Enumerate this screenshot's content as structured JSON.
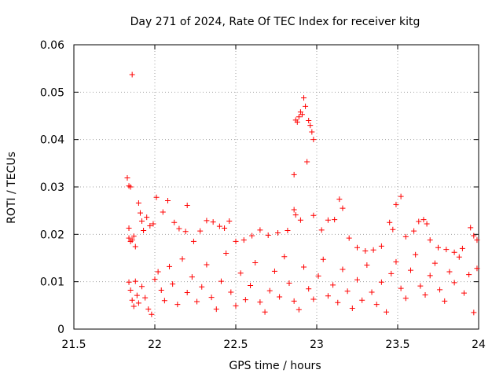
{
  "chart_data": {
    "type": "scatter",
    "title": "Day 271 of 2024, Rate Of TEC Index for receiver kitg",
    "xlabel": "GPS time / hours",
    "ylabel": "ROTI / TECUs",
    "xlim": [
      21.5,
      24
    ],
    "ylim": [
      0,
      0.06
    ],
    "x_ticks": [
      21.5,
      22,
      22.5,
      23,
      23.5,
      24
    ],
    "x_tick_labels": [
      "21.5",
      "22",
      "22.5",
      "23",
      "23.5",
      "24"
    ],
    "y_ticks": [
      0,
      0.01,
      0.02,
      0.03,
      0.04,
      0.05,
      0.06
    ],
    "y_tick_labels": [
      "0",
      "0.01",
      "0.02",
      "0.03",
      "0.04",
      "0.05",
      "0.06"
    ],
    "grid": true,
    "marker": "+",
    "color": "#ff0000",
    "series": [
      {
        "name": "ROTI kitg",
        "points": [
          [
            21.83,
            0.0319
          ],
          [
            21.84,
            0.0302
          ],
          [
            21.85,
            0.03
          ],
          [
            21.84,
            0.0213
          ],
          [
            21.86,
            0.0537
          ],
          [
            21.84,
            0.0192
          ],
          [
            21.85,
            0.0185
          ],
          [
            21.86,
            0.0188
          ],
          [
            21.87,
            0.0196
          ],
          [
            21.88,
            0.0174
          ],
          [
            21.9,
            0.0266
          ],
          [
            21.91,
            0.0245
          ],
          [
            21.92,
            0.0228
          ],
          [
            21.93,
            0.0208
          ],
          [
            21.95,
            0.0236
          ],
          [
            21.97,
            0.0218
          ],
          [
            21.99,
            0.0222
          ],
          [
            22.01,
            0.0278
          ],
          [
            22.05,
            0.0247
          ],
          [
            22.08,
            0.0271
          ],
          [
            22.12,
            0.0225
          ],
          [
            22.15,
            0.0212
          ],
          [
            22.19,
            0.0206
          ],
          [
            22.2,
            0.0261
          ],
          [
            22.24,
            0.0185
          ],
          [
            22.28,
            0.0207
          ],
          [
            22.32,
            0.0229
          ],
          [
            22.36,
            0.0226
          ],
          [
            22.4,
            0.0217
          ],
          [
            22.43,
            0.0213
          ],
          [
            22.46,
            0.0228
          ],
          [
            22.5,
            0.0185
          ],
          [
            22.55,
            0.0188
          ],
          [
            22.6,
            0.0197
          ],
          [
            22.65,
            0.0209
          ],
          [
            22.7,
            0.0198
          ],
          [
            22.76,
            0.0203
          ],
          [
            22.82,
            0.0208
          ],
          [
            22.86,
            0.0252
          ],
          [
            22.87,
            0.0241
          ],
          [
            22.9,
            0.023
          ],
          [
            22.86,
            0.0326
          ],
          [
            22.87,
            0.0441
          ],
          [
            22.88,
            0.0437
          ],
          [
            22.89,
            0.0448
          ],
          [
            22.9,
            0.0458
          ],
          [
            22.91,
            0.0453
          ],
          [
            22.92,
            0.0488
          ],
          [
            22.93,
            0.047
          ],
          [
            22.94,
            0.0353
          ],
          [
            22.95,
            0.044
          ],
          [
            22.96,
            0.043
          ],
          [
            22.97,
            0.0416
          ],
          [
            22.98,
            0.04
          ],
          [
            22.98,
            0.024
          ],
          [
            23.03,
            0.0209
          ],
          [
            23.07,
            0.023
          ],
          [
            23.11,
            0.0231
          ],
          [
            23.14,
            0.0274
          ],
          [
            23.16,
            0.0255
          ],
          [
            23.2,
            0.0192
          ],
          [
            23.25,
            0.0172
          ],
          [
            23.3,
            0.0165
          ],
          [
            23.35,
            0.0167
          ],
          [
            23.4,
            0.0175
          ],
          [
            23.45,
            0.0225
          ],
          [
            23.47,
            0.021
          ],
          [
            23.49,
            0.0263
          ],
          [
            23.52,
            0.028
          ],
          [
            23.55,
            0.0195
          ],
          [
            23.6,
            0.0207
          ],
          [
            23.63,
            0.0227
          ],
          [
            23.66,
            0.0231
          ],
          [
            23.68,
            0.0222
          ],
          [
            23.7,
            0.0188
          ],
          [
            23.75,
            0.0172
          ],
          [
            23.8,
            0.0168
          ],
          [
            23.85,
            0.0162
          ],
          [
            23.9,
            0.017
          ],
          [
            23.95,
            0.0214
          ],
          [
            23.97,
            0.0197
          ],
          [
            23.99,
            0.0188
          ],
          [
            21.84,
            0.0099
          ],
          [
            21.85,
            0.0082
          ],
          [
            21.86,
            0.0061
          ],
          [
            21.87,
            0.0048
          ],
          [
            21.88,
            0.0101
          ],
          [
            21.89,
            0.0071
          ],
          [
            21.9,
            0.0055
          ],
          [
            21.92,
            0.009
          ],
          [
            21.94,
            0.0066
          ],
          [
            21.96,
            0.0042
          ],
          [
            21.98,
            0.0031
          ],
          [
            22.0,
            0.0105
          ],
          [
            22.02,
            0.0121
          ],
          [
            22.04,
            0.0082
          ],
          [
            22.06,
            0.006
          ],
          [
            22.09,
            0.0132
          ],
          [
            22.11,
            0.0095
          ],
          [
            22.14,
            0.0052
          ],
          [
            22.17,
            0.0148
          ],
          [
            22.2,
            0.0077
          ],
          [
            22.23,
            0.011
          ],
          [
            22.26,
            0.0058
          ],
          [
            22.29,
            0.0089
          ],
          [
            22.32,
            0.0136
          ],
          [
            22.35,
            0.0067
          ],
          [
            22.38,
            0.0042
          ],
          [
            22.41,
            0.0101
          ],
          [
            22.44,
            0.016
          ],
          [
            22.47,
            0.0078
          ],
          [
            22.5,
            0.0049
          ],
          [
            22.53,
            0.0118
          ],
          [
            22.56,
            0.0062
          ],
          [
            22.59,
            0.0092
          ],
          [
            22.62,
            0.014
          ],
          [
            22.65,
            0.0057
          ],
          [
            22.68,
            0.0036
          ],
          [
            22.71,
            0.0081
          ],
          [
            22.74,
            0.0122
          ],
          [
            22.77,
            0.0068
          ],
          [
            22.8,
            0.0153
          ],
          [
            22.83,
            0.0097
          ],
          [
            22.86,
            0.0059
          ],
          [
            22.89,
            0.0041
          ],
          [
            22.92,
            0.0131
          ],
          [
            22.95,
            0.0085
          ],
          [
            22.98,
            0.0063
          ],
          [
            23.01,
            0.0112
          ],
          [
            23.04,
            0.0147
          ],
          [
            23.07,
            0.007
          ],
          [
            23.1,
            0.0093
          ],
          [
            23.13,
            0.0056
          ],
          [
            23.16,
            0.0126
          ],
          [
            23.19,
            0.008
          ],
          [
            23.22,
            0.0044
          ],
          [
            23.25,
            0.0104
          ],
          [
            23.28,
            0.0061
          ],
          [
            23.31,
            0.0135
          ],
          [
            23.34,
            0.0078
          ],
          [
            23.37,
            0.0052
          ],
          [
            23.4,
            0.0099
          ],
          [
            23.43,
            0.0036
          ],
          [
            23.46,
            0.0117
          ],
          [
            23.49,
            0.0142
          ],
          [
            23.52,
            0.0086
          ],
          [
            23.55,
            0.0065
          ],
          [
            23.58,
            0.0124
          ],
          [
            23.61,
            0.0157
          ],
          [
            23.64,
            0.0091
          ],
          [
            23.67,
            0.0072
          ],
          [
            23.7,
            0.0113
          ],
          [
            23.73,
            0.0139
          ],
          [
            23.76,
            0.0083
          ],
          [
            23.79,
            0.0059
          ],
          [
            23.82,
            0.0121
          ],
          [
            23.85,
            0.0098
          ],
          [
            23.88,
            0.0152
          ],
          [
            23.91,
            0.0076
          ],
          [
            23.94,
            0.0115
          ],
          [
            23.97,
            0.0035
          ],
          [
            23.99,
            0.0128
          ]
        ]
      }
    ]
  }
}
